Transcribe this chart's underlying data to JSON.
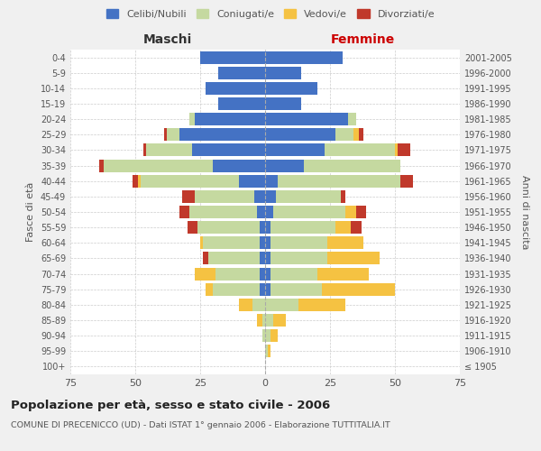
{
  "age_groups": [
    "100+",
    "95-99",
    "90-94",
    "85-89",
    "80-84",
    "75-79",
    "70-74",
    "65-69",
    "60-64",
    "55-59",
    "50-54",
    "45-49",
    "40-44",
    "35-39",
    "30-34",
    "25-29",
    "20-24",
    "15-19",
    "10-14",
    "5-9",
    "0-4"
  ],
  "birth_years": [
    "≤ 1905",
    "1906-1910",
    "1911-1915",
    "1916-1920",
    "1921-1925",
    "1926-1930",
    "1931-1935",
    "1936-1940",
    "1941-1945",
    "1946-1950",
    "1951-1955",
    "1956-1960",
    "1961-1965",
    "1966-1970",
    "1971-1975",
    "1976-1980",
    "1981-1985",
    "1986-1990",
    "1991-1995",
    "1996-2000",
    "2001-2005"
  ],
  "maschi": {
    "celibi": [
      0,
      0,
      0,
      0,
      0,
      2,
      2,
      2,
      2,
      2,
      3,
      4,
      10,
      20,
      28,
      33,
      27,
      18,
      23,
      18,
      25
    ],
    "coniugati": [
      0,
      0,
      1,
      1,
      5,
      18,
      17,
      20,
      22,
      24,
      26,
      23,
      38,
      42,
      18,
      5,
      2,
      0,
      0,
      0,
      0
    ],
    "vedovi": [
      0,
      0,
      0,
      2,
      5,
      3,
      8,
      0,
      1,
      0,
      0,
      0,
      1,
      0,
      0,
      0,
      0,
      0,
      0,
      0,
      0
    ],
    "divorziati": [
      0,
      0,
      0,
      0,
      0,
      0,
      0,
      2,
      0,
      4,
      4,
      5,
      2,
      2,
      1,
      1,
      0,
      0,
      0,
      0,
      0
    ]
  },
  "femmine": {
    "nubili": [
      0,
      0,
      0,
      0,
      0,
      2,
      2,
      2,
      2,
      2,
      3,
      4,
      5,
      15,
      23,
      27,
      32,
      14,
      20,
      14,
      30
    ],
    "coniugate": [
      0,
      1,
      2,
      3,
      13,
      20,
      18,
      22,
      22,
      25,
      28,
      25,
      47,
      37,
      27,
      7,
      3,
      0,
      0,
      0,
      0
    ],
    "vedove": [
      0,
      1,
      3,
      5,
      18,
      28,
      20,
      20,
      14,
      6,
      4,
      0,
      0,
      0,
      1,
      2,
      0,
      0,
      0,
      0,
      0
    ],
    "divorziate": [
      0,
      0,
      0,
      0,
      0,
      0,
      0,
      0,
      0,
      4,
      4,
      2,
      5,
      0,
      5,
      2,
      0,
      0,
      0,
      0,
      0
    ]
  },
  "colors": {
    "celibi": "#4472c4",
    "coniugati": "#c5d9a0",
    "vedovi": "#f5c242",
    "divorziati": "#c0392b"
  },
  "xlim": 75,
  "title": "Popolazione per età, sesso e stato civile - 2006",
  "subtitle": "COMUNE DI PRECENICCO (UD) - Dati ISTAT 1° gennaio 2006 - Elaborazione TUTTITALIA.IT",
  "ylabel_left": "Fasce di età",
  "ylabel_right": "Anni di nascita",
  "xlabel_left": "Maschi",
  "xlabel_right": "Femmine",
  "bg_color": "#f0f0f0",
  "plot_bg": "#ffffff"
}
